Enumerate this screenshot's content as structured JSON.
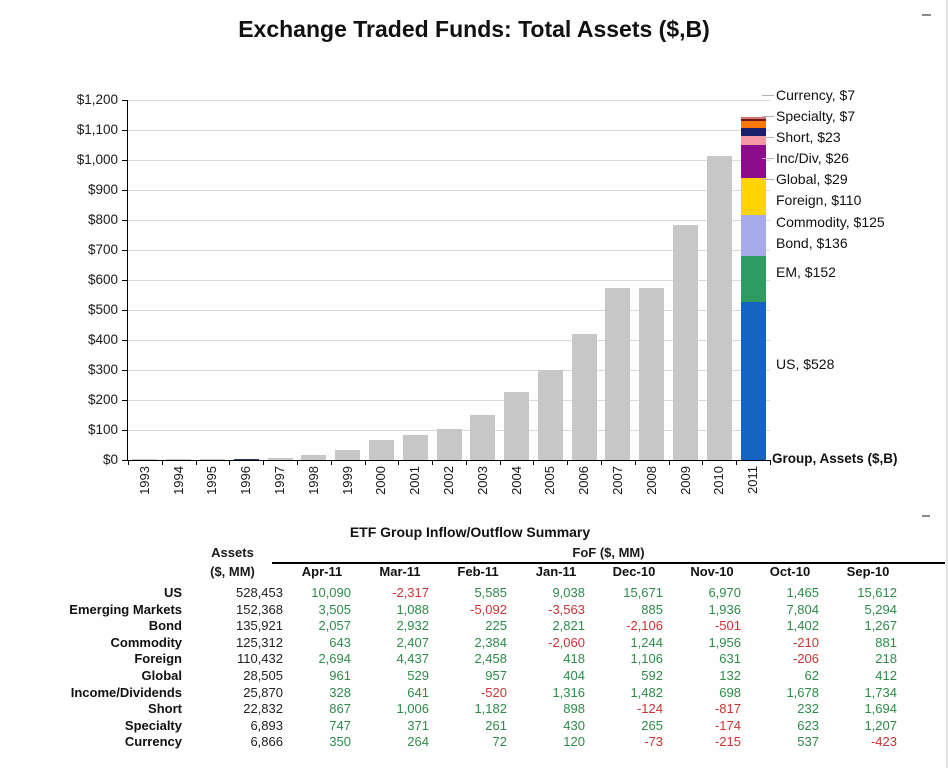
{
  "title": "Exchange Traded Funds: Total Assets ($,B)",
  "chart_data": {
    "type": "bar",
    "title": "Exchange Traded Funds: Total Assets ($,B)",
    "ylabel": "Total Assets ($,B)",
    "ylim": [
      0,
      1200
    ],
    "y_tick_step": 100,
    "y_tick_labels": [
      "$0",
      "$100",
      "$200",
      "$300",
      "$400",
      "$500",
      "$600",
      "$700",
      "$800",
      "$900",
      "$1,000",
      "$1,100",
      "$1,200"
    ],
    "grid": true,
    "categories": [
      "1993",
      "1994",
      "1995",
      "1996",
      "1997",
      "1998",
      "1999",
      "2000",
      "2001",
      "2002",
      "2003",
      "2004",
      "2005",
      "2006",
      "2007",
      "2008",
      "2009",
      "2010",
      "2011"
    ],
    "values": [
      0.5,
      0.4,
      1,
      2.4,
      6.7,
      16,
      34,
      66,
      83,
      102,
      151,
      228,
      301,
      421,
      573,
      572,
      785,
      1012,
      1143
    ],
    "bar_color_default": "#c7c7c7",
    "bar_color_overrides": {
      "1996": "#1f3864"
    },
    "stacked_year": "2011",
    "stacked_segments_bottom_to_top": [
      {
        "label": "US",
        "value": 528,
        "color": "#1565c0"
      },
      {
        "label": "EM",
        "value": 152,
        "color": "#2e9b60"
      },
      {
        "label": "Bond",
        "value": 136,
        "color": "#a7aaeb"
      },
      {
        "label": "Commodity",
        "value": 125,
        "color": "#ffd400"
      },
      {
        "label": "Foreign",
        "value": 110,
        "color": "#8b0d8b"
      },
      {
        "label": "Global",
        "value": 29,
        "color": "#f498a6"
      },
      {
        "label": "Inc/Div",
        "value": 26,
        "color": "#1b1f6b"
      },
      {
        "label": "Short",
        "value": 23,
        "color": "#f97806"
      },
      {
        "label": "Specialty",
        "value": 7,
        "color": "#701519"
      },
      {
        "label": "Currency",
        "value": 7,
        "color": "#d4746c"
      }
    ],
    "callouts": [
      {
        "text": "Currency, $7",
        "y": 95,
        "leader": true
      },
      {
        "text": "Specialty, $7",
        "y": 116,
        "leader": true
      },
      {
        "text": "Short, $23",
        "y": 137,
        "leader": true
      },
      {
        "text": "Inc/Div, $26",
        "y": 158,
        "leader": true
      },
      {
        "text": "Global, $29",
        "y": 179,
        "leader": true
      },
      {
        "text": "Foreign, $110",
        "y": 200,
        "leader": false
      },
      {
        "text": "Commodity, $125",
        "y": 222,
        "leader": false
      },
      {
        "text": "Bond, $136",
        "y": 243,
        "leader": false
      },
      {
        "text": "EM, $152",
        "y": 272,
        "leader": false
      },
      {
        "text": "US, $528",
        "y": 364,
        "leader": false
      }
    ],
    "axis_note": "Group, Assets ($,B)",
    "legend_position": "right-callouts"
  },
  "table": {
    "title": "ETF Group Inflow/Outflow Summary",
    "assets_header_line1": "Assets",
    "assets_header_line2": "($, MM)",
    "fof_header": "FoF ($, MM)",
    "months": [
      "Apr-11",
      "Mar-11",
      "Feb-11",
      "Jan-11",
      "Dec-10",
      "Nov-10",
      "Oct-10",
      "Sep-10"
    ],
    "positive_color": "#2e8b4a",
    "negative_color": "#cc3333",
    "rows": [
      {
        "group": "US",
        "assets": "528,453",
        "fof": [
          "10,090",
          "-2,317",
          "5,585",
          "9,038",
          "15,671",
          "6,970",
          "1,465",
          "15,612"
        ]
      },
      {
        "group": "Emerging Markets",
        "assets": "152,368",
        "fof": [
          "3,505",
          "1,088",
          "-5,092",
          "-3,563",
          "885",
          "1,936",
          "7,804",
          "5,294"
        ]
      },
      {
        "group": "Bond",
        "assets": "135,921",
        "fof": [
          "2,057",
          "2,932",
          "225",
          "2,821",
          "-2,106",
          "-501",
          "1,402",
          "1,267"
        ]
      },
      {
        "group": "Commodity",
        "assets": "125,312",
        "fof": [
          "643",
          "2,407",
          "2,384",
          "-2,060",
          "1,244",
          "1,956",
          "-210",
          "881"
        ]
      },
      {
        "group": "Foreign",
        "assets": "110,432",
        "fof": [
          "2,694",
          "4,437",
          "2,458",
          "418",
          "1,106",
          "631",
          "-206",
          "218"
        ]
      },
      {
        "group": "Global",
        "assets": "28,505",
        "fof": [
          "961",
          "529",
          "957",
          "404",
          "592",
          "132",
          "62",
          "412"
        ]
      },
      {
        "group": "Income/Dividends",
        "assets": "25,870",
        "fof": [
          "328",
          "641",
          "-520",
          "1,316",
          "1,482",
          "698",
          "1,678",
          "1,734"
        ]
      },
      {
        "group": "Short",
        "assets": "22,832",
        "fof": [
          "867",
          "1,006",
          "1,182",
          "898",
          "-124",
          "-817",
          "232",
          "1,694"
        ]
      },
      {
        "group": "Specialty",
        "assets": "6,893",
        "fof": [
          "747",
          "371",
          "261",
          "430",
          "265",
          "-174",
          "623",
          "1,207"
        ]
      },
      {
        "group": "Currency",
        "assets": "6,866",
        "fof": [
          "350",
          "264",
          "72",
          "120",
          "-73",
          "-215",
          "537",
          "-423"
        ]
      }
    ]
  }
}
